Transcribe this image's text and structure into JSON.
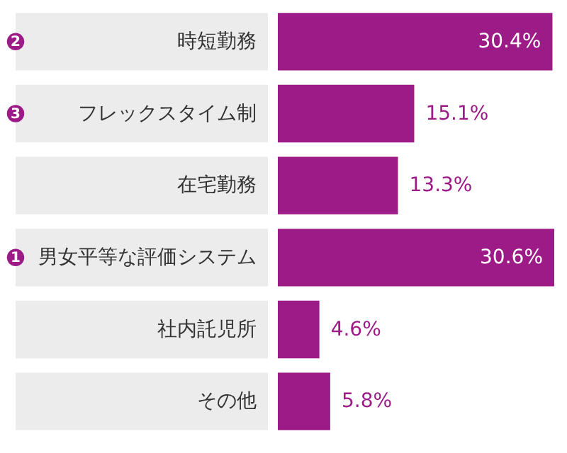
{
  "chart_data": {
    "type": "bar",
    "orientation": "horizontal",
    "categories": [
      "時短勤務",
      "フレックスタイム制",
      "在宅勤務",
      "男女平等な評価システム",
      "社内託児所",
      "その他"
    ],
    "values": [
      30.4,
      15.1,
      13.3,
      30.6,
      4.6,
      5.8
    ],
    "value_labels": [
      "30.4%",
      "15.1%",
      "13.3%",
      "30.6%",
      "4.6%",
      "5.8%"
    ],
    "color": "#9c1b87",
    "annotations": [
      "1",
      "2",
      "3"
    ]
  }
}
